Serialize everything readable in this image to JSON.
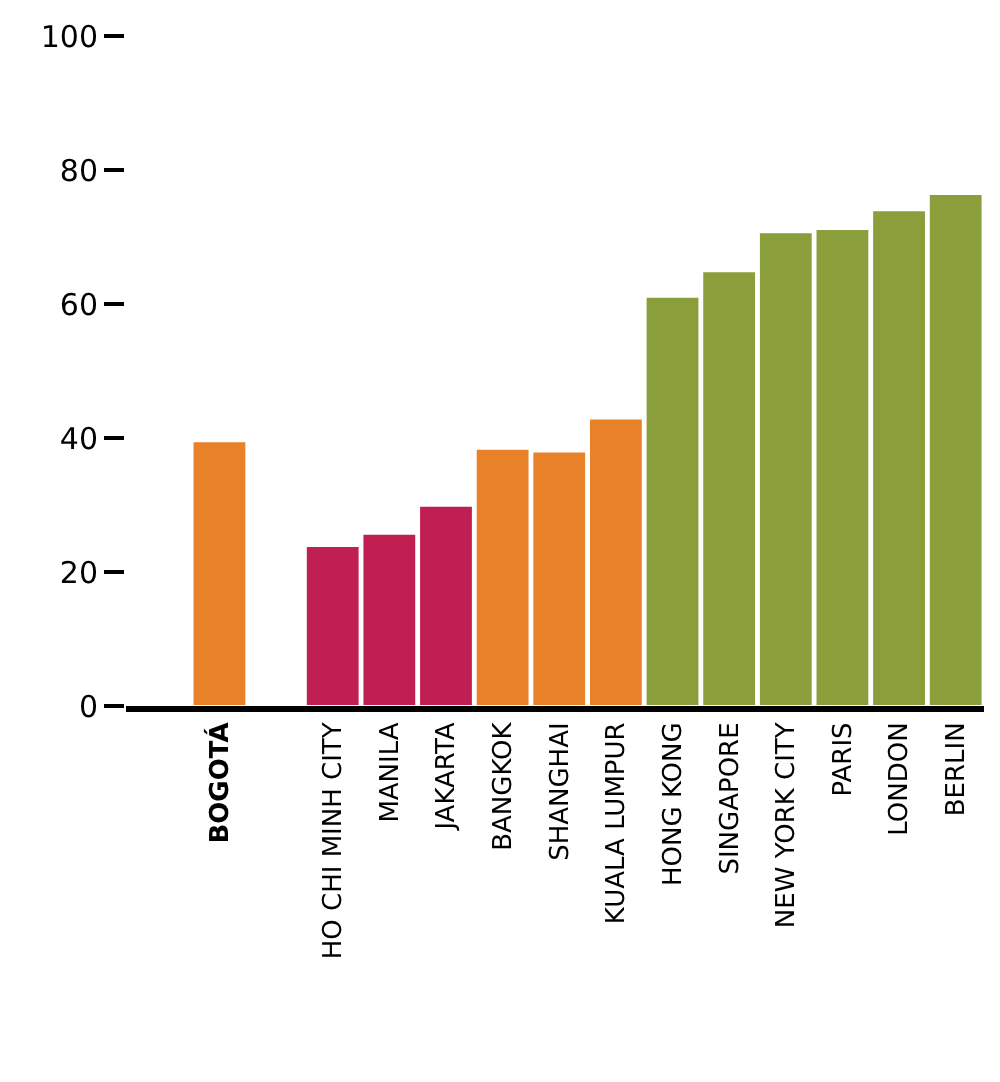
{
  "chart_data": {
    "type": "bar",
    "categories": [
      "BOGOTÁ",
      null,
      "HO CHI MINH CITY",
      "MANILA",
      "JAKARTA",
      "BANGKOK",
      "SHANGHAI",
      "KUALA LUMPUR",
      "HONG KONG",
      "SINGAPORE",
      "NEW YORK CITY",
      "PARIS",
      "LONDON",
      "BERLIN"
    ],
    "values": [
      39.5,
      null,
      23.9,
      25.7,
      29.9,
      38.4,
      38.0,
      42.9,
      61.1,
      64.9,
      70.7,
      71.2,
      74.0,
      76.4
    ],
    "colors": [
      "#e88127",
      "#ffffff",
      "#c01f52",
      "#c01f52",
      "#c01f52",
      "#e88127",
      "#e88127",
      "#e88127",
      "#8a9e3b",
      "#8a9e3b",
      "#8a9e3b",
      "#8a9e3b",
      "#8a9e3b",
      "#8a9e3b"
    ],
    "ylim": [
      0,
      100
    ],
    "yticks": [
      0,
      20,
      40,
      60,
      80,
      100
    ]
  }
}
